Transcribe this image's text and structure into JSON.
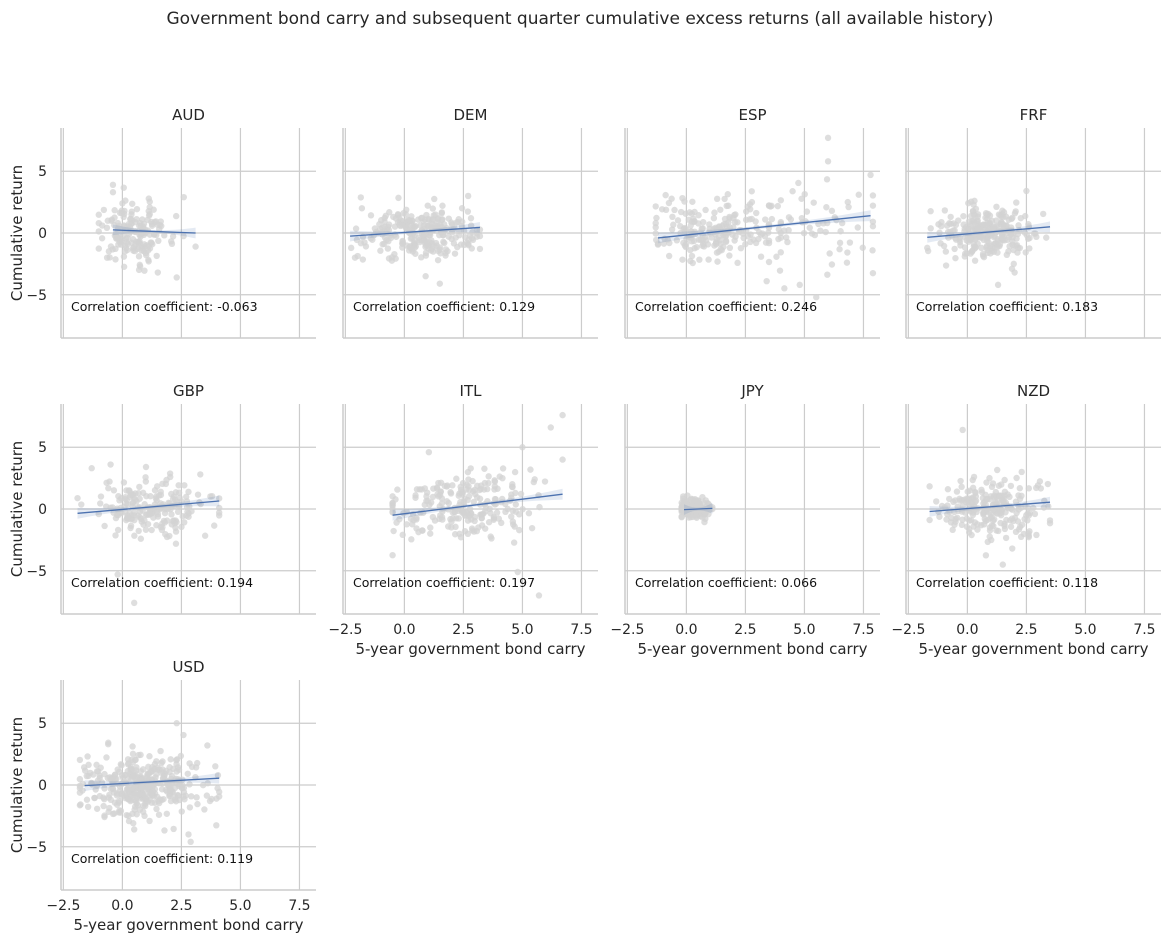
{
  "chart_data": {
    "type": "scatter",
    "title": "Government bond carry and subsequent quarter cumulative excess returns (all available history)",
    "xlabel": "5-year government bond carry",
    "ylabel": "Cumulative return",
    "xlim": [
      -2.6,
      8.2
    ],
    "ylim": [
      -8.5,
      8.5
    ],
    "xticks": [
      -2.5,
      0.0,
      2.5,
      5.0,
      7.5
    ],
    "xtick_labels": [
      "−2.5",
      "0.0",
      "2.5",
      "5.0",
      "7.5"
    ],
    "yticks": [
      5,
      0,
      -5
    ],
    "ytick_labels": [
      "5",
      "0",
      "−5"
    ],
    "corr_prefix": "Correlation coefficient:",
    "grid": true,
    "colors": {
      "points": "#d3d3d3",
      "line": "#4c72b0",
      "band": "#4c72b0"
    },
    "panels": [
      {
        "name": "AUD",
        "corr": "-0.063",
        "fit": {
          "x0": -0.4,
          "y0": 0.25,
          "x1": 3.1,
          "y1": 0.0
        },
        "clusters": [
          {
            "cx": 0.5,
            "sx": 0.8,
            "cy": 0.05,
            "sy": 1.2,
            "n": 170,
            "xmin": -1.0,
            "xmax": 3.1
          }
        ],
        "extra_points": [
          [
            -0.4,
            3.9
          ],
          [
            -0.4,
            3.3
          ],
          [
            2.6,
            2.9
          ],
          [
            2.3,
            -3.6
          ],
          [
            1.5,
            -3.2
          ],
          [
            3.1,
            -1.1
          ]
        ]
      },
      {
        "name": "DEM",
        "corr": "0.129",
        "fit": {
          "x0": -2.3,
          "y0": -0.25,
          "x1": 3.2,
          "y1": 0.45
        },
        "clusters": [
          {
            "cx": 0.7,
            "sx": 1.1,
            "cy": 0.0,
            "sy": 1.0,
            "n": 260,
            "xmin": -2.3,
            "xmax": 3.2
          }
        ],
        "extra_points": [
          [
            1.5,
            -4.1
          ],
          [
            0.9,
            -3.5
          ],
          [
            2.7,
            3.0
          ],
          [
            -1.8,
            2.0
          ]
        ]
      },
      {
        "name": "ESP",
        "corr": "0.246",
        "fit": {
          "x0": -1.2,
          "y0": -0.4,
          "x1": 7.8,
          "y1": 1.4
        },
        "clusters": [
          {
            "cx": 1.2,
            "sx": 1.3,
            "cy": 0.1,
            "sy": 1.1,
            "n": 200,
            "xmin": -1.3,
            "xmax": 4.0
          },
          {
            "cx": 5.3,
            "sx": 1.3,
            "cy": 0.7,
            "sy": 1.9,
            "n": 60,
            "xmin": 3.5,
            "xmax": 7.9
          }
        ],
        "extra_points": [
          [
            6.0,
            7.7
          ],
          [
            6.0,
            5.8
          ],
          [
            7.3,
            3.1
          ],
          [
            7.8,
            4.7
          ],
          [
            5.5,
            -5.2
          ],
          [
            6.8,
            -2.4
          ],
          [
            4.8,
            -4.2
          ],
          [
            3.4,
            -3.9
          ]
        ]
      },
      {
        "name": "FRF",
        "corr": "0.183",
        "fit": {
          "x0": -1.7,
          "y0": -0.35,
          "x1": 3.5,
          "y1": 0.5
        },
        "clusters": [
          {
            "cx": 0.9,
            "sx": 1.0,
            "cy": 0.0,
            "sy": 1.0,
            "n": 260,
            "xmin": -1.7,
            "xmax": 3.5
          }
        ],
        "extra_points": [
          [
            2.5,
            3.4
          ],
          [
            2.0,
            -3.2
          ],
          [
            1.3,
            -4.2
          ],
          [
            0.3,
            2.6
          ]
        ]
      },
      {
        "name": "GBP",
        "corr": "0.194",
        "fit": {
          "x0": -1.9,
          "y0": -0.35,
          "x1": 4.1,
          "y1": 0.65
        },
        "clusters": [
          {
            "cx": 1.2,
            "sx": 1.3,
            "cy": 0.1,
            "sy": 1.2,
            "n": 200,
            "xmin": -1.9,
            "xmax": 4.1
          }
        ],
        "extra_points": [
          [
            -0.2,
            -5.3
          ],
          [
            0.5,
            -7.6
          ],
          [
            -0.5,
            3.6
          ],
          [
            1.0,
            3.4
          ],
          [
            -1.3,
            3.3
          ],
          [
            3.3,
            2.8
          ]
        ]
      },
      {
        "name": "ITL",
        "corr": "0.197",
        "fit": {
          "x0": -0.5,
          "y0": -0.5,
          "x1": 6.7,
          "y1": 1.2
        },
        "clusters": [
          {
            "cx": 2.4,
            "sx": 1.6,
            "cy": 0.3,
            "sy": 1.4,
            "n": 230,
            "xmin": -0.5,
            "xmax": 6.7
          }
        ],
        "extra_points": [
          [
            6.7,
            7.6
          ],
          [
            6.2,
            6.6
          ],
          [
            5.0,
            5.0
          ],
          [
            4.8,
            -5.1
          ],
          [
            5.7,
            -7.0
          ],
          [
            6.7,
            4.0
          ]
        ]
      },
      {
        "name": "JPY",
        "corr": "0.066",
        "fit": {
          "x0": -0.1,
          "y0": -0.05,
          "x1": 1.1,
          "y1": 0.05
        },
        "clusters": [
          {
            "cx": 0.35,
            "sx": 0.35,
            "cy": 0.0,
            "sy": 0.4,
            "n": 150,
            "xmin": -0.2,
            "xmax": 1.1
          }
        ],
        "extra_points": []
      },
      {
        "name": "NZD",
        "corr": "0.118",
        "fit": {
          "x0": -1.6,
          "y0": -0.2,
          "x1": 3.5,
          "y1": 0.55
        },
        "clusters": [
          {
            "cx": 1.0,
            "sx": 1.1,
            "cy": 0.1,
            "sy": 1.2,
            "n": 230,
            "xmin": -1.6,
            "xmax": 3.5
          }
        ],
        "extra_points": [
          [
            -0.2,
            6.4
          ],
          [
            1.5,
            -4.5
          ],
          [
            1.9,
            -3.2
          ],
          [
            2.3,
            3.0
          ]
        ]
      },
      {
        "name": "USD",
        "corr": "0.119",
        "fit": {
          "x0": -1.6,
          "y0": -0.05,
          "x1": 4.1,
          "y1": 0.55
        },
        "clusters": [
          {
            "cx": 1.0,
            "sx": 1.3,
            "cy": 0.1,
            "sy": 1.3,
            "n": 380,
            "xmin": -1.8,
            "xmax": 4.1
          }
        ],
        "extra_points": [
          [
            2.3,
            5.0
          ],
          [
            2.8,
            -4.0
          ],
          [
            0.5,
            -3.6
          ],
          [
            -0.6,
            3.3
          ],
          [
            3.6,
            3.2
          ]
        ]
      }
    ]
  }
}
